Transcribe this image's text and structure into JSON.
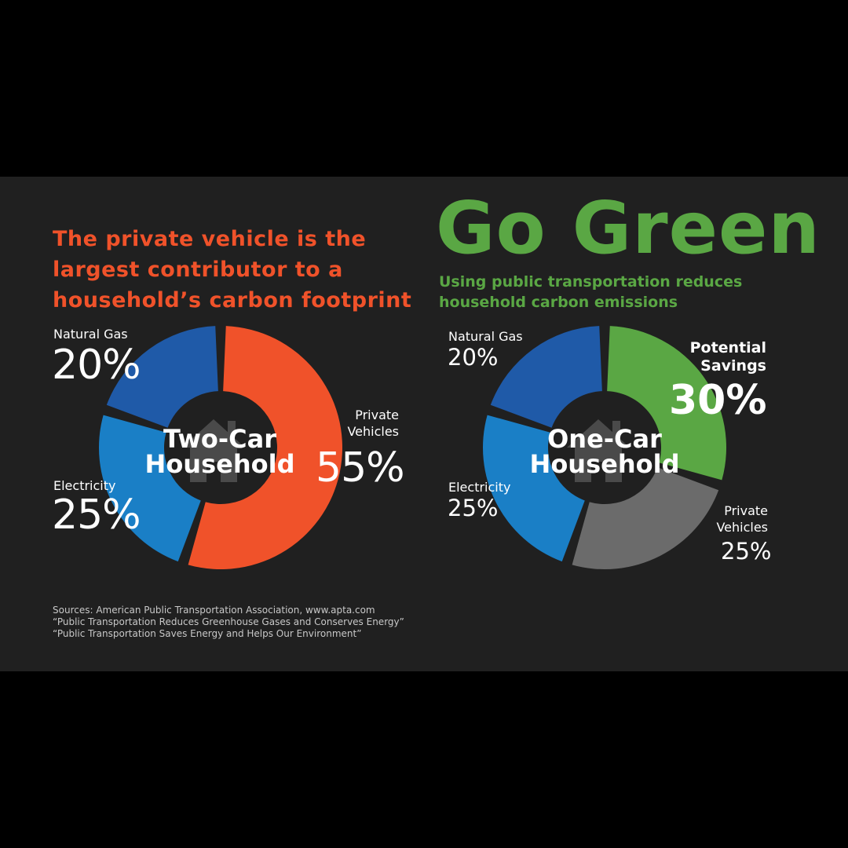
{
  "heading_lines": [
    "The private vehicle is the",
    "largest contributor to a",
    "household’s carbon footprint"
  ],
  "go_green": "Go Green",
  "subtitle_lines": [
    "Using public transportation reduces",
    "household carbon emissions"
  ],
  "sources_lines": [
    "Sources: American Public Transportation Association, www.apta.com",
    "“Public Transportation Reduces Greenhouse Gases and Conserves Energy”",
    "“Public Transportation Saves Energy and Helps Our Environment”"
  ],
  "left_chart": {
    "center_lines": [
      "Two-Car",
      "Household"
    ],
    "labels": {
      "natural_gas": "Natural Gas",
      "natural_gas_pct": "20%",
      "electricity": "Electricity",
      "electricity_pct": "25%",
      "private_line1": "Private",
      "private_line2": "Vehicles",
      "private_pct": "55%"
    }
  },
  "right_chart": {
    "center_lines": [
      "One-Car",
      "Household"
    ],
    "labels": {
      "natural_gas": "Natural Gas",
      "natural_gas_pct": "20%",
      "electricity": "Electricity",
      "electricity_pct": "25%",
      "private_line1": "Private",
      "private_line2": "Vehicles",
      "private_pct": "25%",
      "savings_line1": "Potential",
      "savings_line2": "Savings",
      "savings_pct": "30%"
    }
  },
  "colors": {
    "background": "#202020",
    "orange": "#f0522a",
    "green": "#5aa744",
    "dark_blue": "#1f5aa8",
    "light_blue": "#1a7fc6",
    "gray": "#6b6b6b",
    "house_icon": "#4a4a4a"
  },
  "chart_data": [
    {
      "type": "pie",
      "categories": [
        "Private Vehicles",
        "Electricity",
        "Natural Gas"
      ],
      "values": [
        55,
        25,
        20
      ],
      "colors": [
        "#f0522a",
        "#1a7fc6",
        "#1f5aa8"
      ]
    },
    {
      "type": "pie",
      "categories": [
        "Potential Savings",
        "Private Vehicles",
        "Electricity",
        "Natural Gas"
      ],
      "values": [
        30,
        25,
        25,
        20
      ],
      "colors": [
        "#5aa744",
        "#6b6b6b",
        "#1a7fc6",
        "#1f5aa8"
      ]
    }
  ]
}
